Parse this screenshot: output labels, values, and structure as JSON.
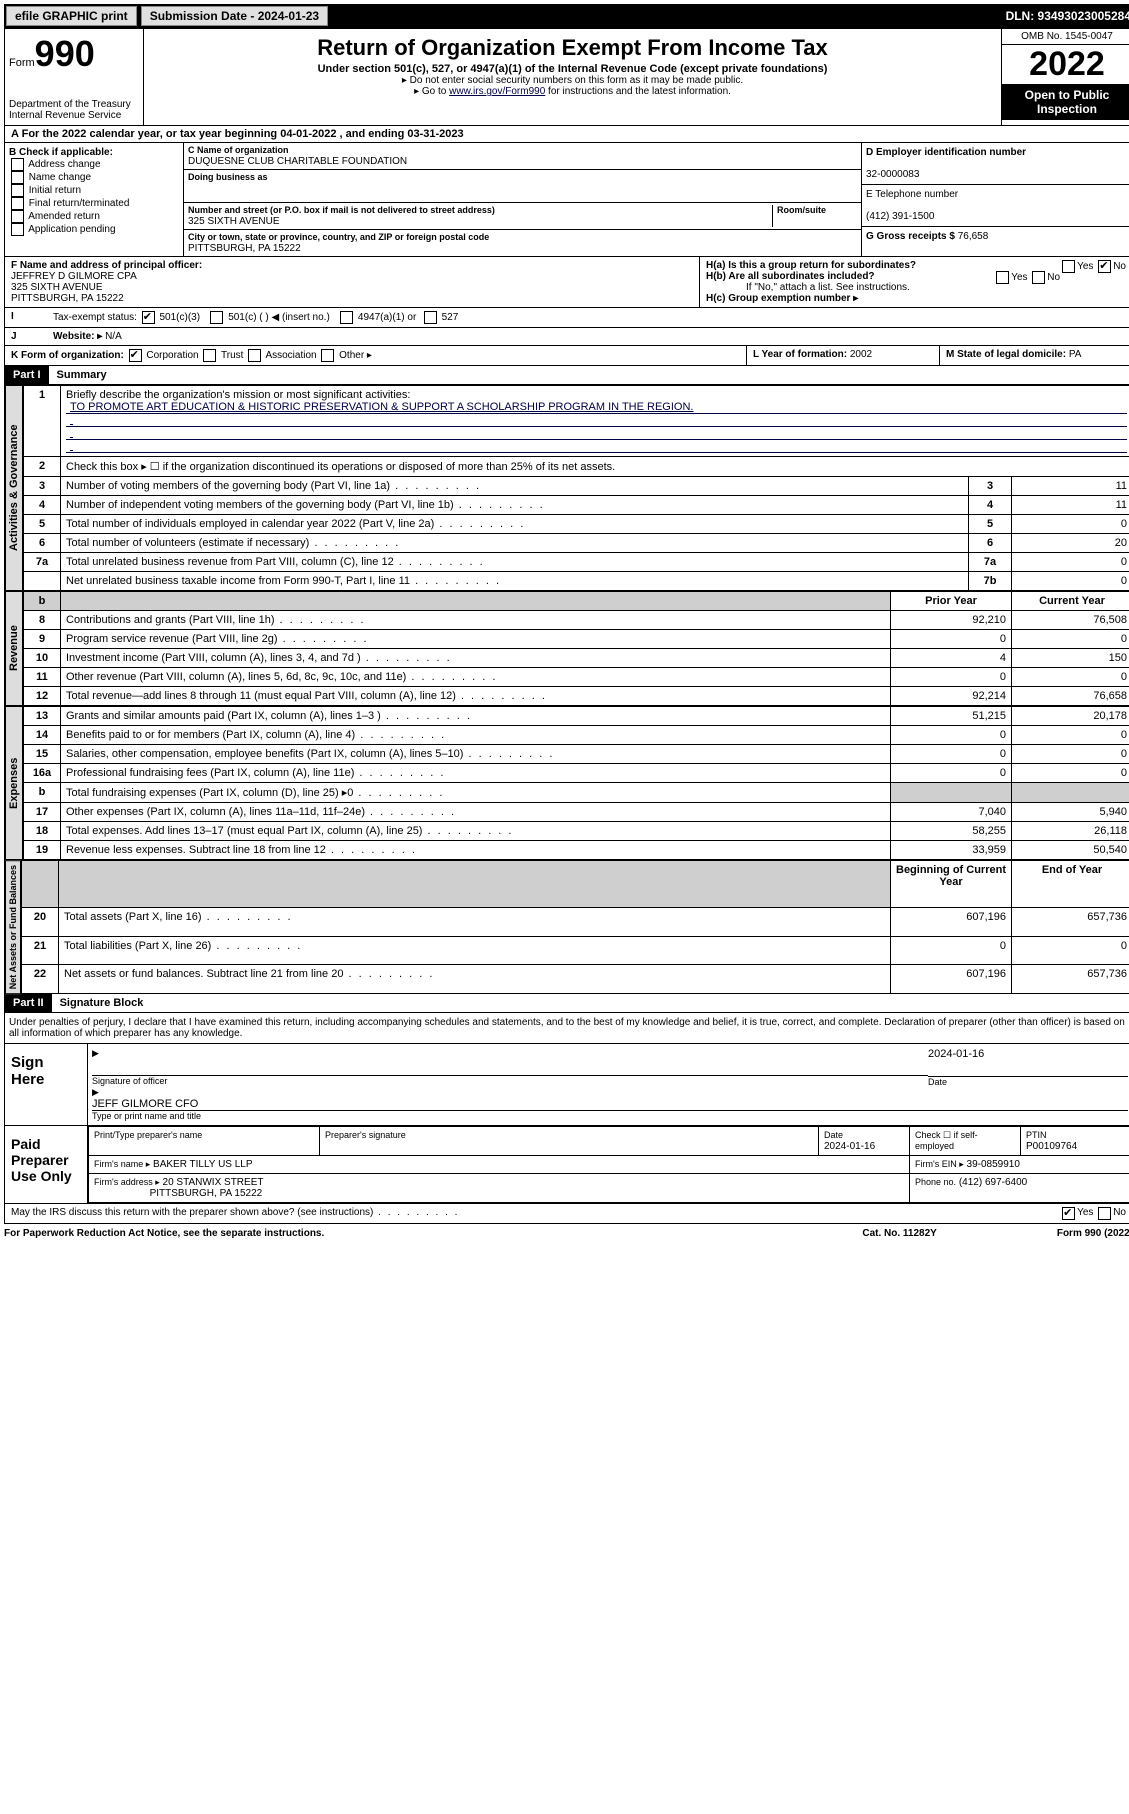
{
  "topbar": {
    "efile": "efile GRAPHIC print",
    "sub_label": "Submission Date - 2024-01-23",
    "dln": "DLN: 93493023005284"
  },
  "header": {
    "form_word": "Form",
    "form_num": "990",
    "dept": "Department of the Treasury",
    "irs": "Internal Revenue Service",
    "title": "Return of Organization Exempt From Income Tax",
    "sub1": "Under section 501(c), 527, or 4947(a)(1) of the Internal Revenue Code (except private foundations)",
    "sub2": "▸ Do not enter social security numbers on this form as it may be made public.",
    "sub3_a": "▸ Go to ",
    "sub3_link": "www.irs.gov/Form990",
    "sub3_b": " for instructions and the latest information.",
    "omb": "OMB No. 1545-0047",
    "year": "2022",
    "inspect": "Open to Public Inspection"
  },
  "lineA": {
    "text_a": "For the 2022 calendar year, or tax year beginning ",
    "begin": "04-01-2022",
    "text_b": " , and ending ",
    "end": "03-31-2023"
  },
  "boxB": {
    "hdr": "B Check if applicable:",
    "opts": [
      "Address change",
      "Name change",
      "Initial return",
      "Final return/terminated",
      "Amended return",
      "Application pending"
    ]
  },
  "boxC": {
    "name_lbl": "C Name of organization",
    "name": "DUQUESNE CLUB CHARITABLE FOUNDATION",
    "dba_lbl": "Doing business as",
    "dba": "",
    "addr_lbl": "Number and street (or P.O. box if mail is not delivered to street address)",
    "room_lbl": "Room/suite",
    "addr": "325 SIXTH AVENUE",
    "city_lbl": "City or town, state or province, country, and ZIP or foreign postal code",
    "city": "PITTSBURGH, PA  15222"
  },
  "boxD": {
    "lbl": "D Employer identification number",
    "val": "32-0000083"
  },
  "boxE": {
    "lbl": "E Telephone number",
    "val": "(412) 391-1500"
  },
  "boxG": {
    "lbl": "G Gross receipts $",
    "val": "76,658"
  },
  "boxF": {
    "lbl": "F  Name and address of principal officer:",
    "l1": "JEFFREY D GILMORE CPA",
    "l2": "325 SIXTH AVENUE",
    "l3": "PITTSBURGH, PA  15222"
  },
  "boxH": {
    "ha": "H(a)  Is this a group return for subordinates?",
    "hb": "H(b)  Are all subordinates included?",
    "hb_note": "If \"No,\" attach a list. See instructions.",
    "hc": "H(c)  Group exemption number ▸",
    "yes": "Yes",
    "no": "No"
  },
  "boxI": {
    "lbl": "Tax-exempt status:",
    "o1": "501(c)(3)",
    "o2": "501(c) (   ) ◀ (insert no.)",
    "o3": "4947(a)(1) or",
    "o4": "527"
  },
  "boxJ": {
    "lbl": "Website: ▸",
    "val": "N/A"
  },
  "boxK": {
    "lbl": "K Form of organization:",
    "o1": "Corporation",
    "o2": "Trust",
    "o3": "Association",
    "o4": "Other ▸"
  },
  "boxL": {
    "lbl": "L Year of formation:",
    "val": "2002"
  },
  "boxM": {
    "lbl": "M State of legal domicile:",
    "val": "PA"
  },
  "part1": {
    "hdr": "Part I",
    "title": "Summary"
  },
  "summary": {
    "l1_lbl": "Briefly describe the organization's mission or most significant activities:",
    "l1_val": "TO PROMOTE ART EDUCATION & HISTORIC PRESERVATION & SUPPORT A SCHOLARSHIP PROGRAM IN THE REGION.",
    "l2": "Check this box ▸ ☐  if the organization discontinued its operations or disposed of more than 25% of its net assets.",
    "rows_gov": [
      {
        "n": "3",
        "t": "Number of voting members of the governing body (Part VI, line 1a)",
        "b": "3",
        "v": "11"
      },
      {
        "n": "4",
        "t": "Number of independent voting members of the governing body (Part VI, line 1b)",
        "b": "4",
        "v": "11"
      },
      {
        "n": "5",
        "t": "Total number of individuals employed in calendar year 2022 (Part V, line 2a)",
        "b": "5",
        "v": "0"
      },
      {
        "n": "6",
        "t": "Total number of volunteers (estimate if necessary)",
        "b": "6",
        "v": "20"
      },
      {
        "n": "7a",
        "t": "Total unrelated business revenue from Part VIII, column (C), line 12",
        "b": "7a",
        "v": "0"
      },
      {
        "n": "",
        "t": "Net unrelated business taxable income from Form 990-T, Part I, line 11",
        "b": "7b",
        "v": "0"
      }
    ],
    "col_prior": "Prior Year",
    "col_curr": "Current Year",
    "rows_rev": [
      {
        "n": "8",
        "t": "Contributions and grants (Part VIII, line 1h)",
        "p": "92,210",
        "c": "76,508"
      },
      {
        "n": "9",
        "t": "Program service revenue (Part VIII, line 2g)",
        "p": "0",
        "c": "0"
      },
      {
        "n": "10",
        "t": "Investment income (Part VIII, column (A), lines 3, 4, and 7d )",
        "p": "4",
        "c": "150"
      },
      {
        "n": "11",
        "t": "Other revenue (Part VIII, column (A), lines 5, 6d, 8c, 9c, 10c, and 11e)",
        "p": "0",
        "c": "0"
      },
      {
        "n": "12",
        "t": "Total revenue—add lines 8 through 11 (must equal Part VIII, column (A), line 12)",
        "p": "92,214",
        "c": "76,658"
      }
    ],
    "rows_exp": [
      {
        "n": "13",
        "t": "Grants and similar amounts paid (Part IX, column (A), lines 1–3 )",
        "p": "51,215",
        "c": "20,178"
      },
      {
        "n": "14",
        "t": "Benefits paid to or for members (Part IX, column (A), line 4)",
        "p": "0",
        "c": "0"
      },
      {
        "n": "15",
        "t": "Salaries, other compensation, employee benefits (Part IX, column (A), lines 5–10)",
        "p": "0",
        "c": "0"
      },
      {
        "n": "16a",
        "t": "Professional fundraising fees (Part IX, column (A), line 11e)",
        "p": "0",
        "c": "0"
      },
      {
        "n": "b",
        "t": "Total fundraising expenses (Part IX, column (D), line 25) ▸0",
        "p": "",
        "c": "",
        "shade": true
      },
      {
        "n": "17",
        "t": "Other expenses (Part IX, column (A), lines 11a–11d, 11f–24e)",
        "p": "7,040",
        "c": "5,940"
      },
      {
        "n": "18",
        "t": "Total expenses. Add lines 13–17 (must equal Part IX, column (A), line 25)",
        "p": "58,255",
        "c": "26,118"
      },
      {
        "n": "19",
        "t": "Revenue less expenses. Subtract line 18 from line 12",
        "p": "33,959",
        "c": "50,540"
      }
    ],
    "col_begin": "Beginning of Current Year",
    "col_end": "End of Year",
    "rows_net": [
      {
        "n": "20",
        "t": "Total assets (Part X, line 16)",
        "p": "607,196",
        "c": "657,736"
      },
      {
        "n": "21",
        "t": "Total liabilities (Part X, line 26)",
        "p": "0",
        "c": "0"
      },
      {
        "n": "22",
        "t": "Net assets or fund balances. Subtract line 21 from line 20",
        "p": "607,196",
        "c": "657,736"
      }
    ],
    "vlabels": {
      "gov": "Activities & Governance",
      "rev": "Revenue",
      "exp": "Expenses",
      "net": "Net Assets or Fund Balances"
    }
  },
  "part2": {
    "hdr": "Part II",
    "title": "Signature Block"
  },
  "penalty": "Under penalties of perjury, I declare that I have examined this return, including accompanying schedules and statements, and to the best of my knowledge and belief, it is true, correct, and complete. Declaration of preparer (other than officer) is based on all information of which preparer has any knowledge.",
  "sign": {
    "here": "Sign Here",
    "sig_lbl": "Signature of officer",
    "date_lbl": "Date",
    "date": "2024-01-16",
    "name": "JEFF GILMORE  CFO",
    "name_lbl": "Type or print name and title"
  },
  "paid": {
    "hdr": "Paid Preparer Use Only",
    "c1": "Print/Type preparer's name",
    "c2": "Preparer's signature",
    "c3": "Date",
    "c3v": "2024-01-16",
    "c4": "Check ☐ if self-employed",
    "c5": "PTIN",
    "c5v": "P00109764",
    "firm_lbl": "Firm's name   ▸",
    "firm": "BAKER TILLY US LLP",
    "ein_lbl": "Firm's EIN ▸",
    "ein": "39-0859910",
    "addr_lbl": "Firm's address ▸",
    "addr1": "20 STANWIX STREET",
    "addr2": "PITTSBURGH, PA  15222",
    "phone_lbl": "Phone no.",
    "phone": "(412) 697-6400"
  },
  "discuss": "May the IRS discuss this return with the preparer shown above? (see instructions)",
  "footer": {
    "l": "For Paperwork Reduction Act Notice, see the separate instructions.",
    "m": "Cat. No. 11282Y",
    "r": "Form 990 (2022)"
  }
}
